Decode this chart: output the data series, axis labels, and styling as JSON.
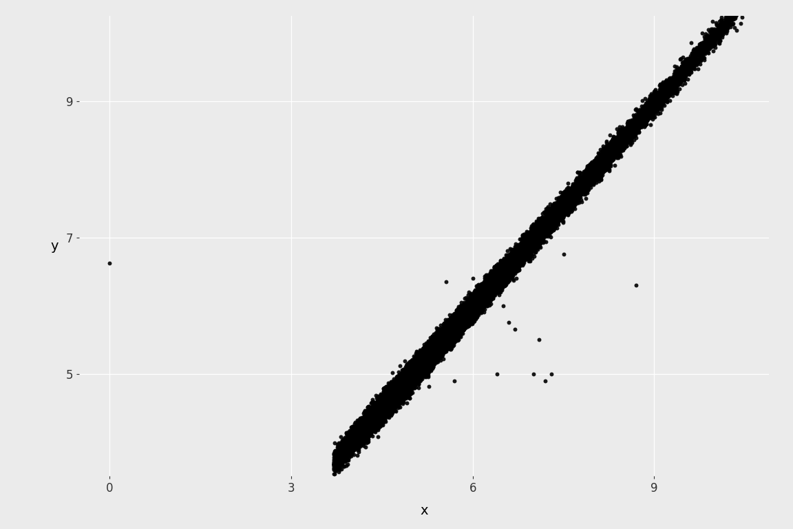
{
  "background_color": "#ebebeb",
  "point_color": "#000000",
  "point_size": 18,
  "point_alpha": 0.9,
  "xlabel": "x",
  "ylabel": "y",
  "xlim": [
    -0.5,
    10.9
  ],
  "ylim": [
    3.5,
    10.25
  ],
  "xticks": [
    0,
    3,
    6,
    9
  ],
  "yticks": [
    5,
    7,
    9
  ],
  "grid_color": "#ffffff",
  "label_fontsize": 14,
  "tick_fontsize": 12,
  "figsize": [
    11.52,
    7.68
  ],
  "dpi": 100,
  "outliers_x": [
    5.28,
    5.56,
    6.2,
    6.5,
    6.5,
    6.6,
    6.7,
    6.75,
    7.1,
    7.2,
    7.3,
    8.7,
    5.7,
    6.0,
    6.9,
    7.0,
    6.4,
    7.5
  ],
  "outliers_y": [
    4.82,
    6.35,
    6.35,
    6.35,
    6.0,
    5.75,
    5.65,
    6.75,
    5.5,
    4.9,
    5.0,
    6.3,
    4.9,
    6.4,
    6.75,
    5.0,
    5.0,
    6.75
  ],
  "outlier_single_x": [
    0.0
  ],
  "outlier_single_y": [
    6.62
  ]
}
